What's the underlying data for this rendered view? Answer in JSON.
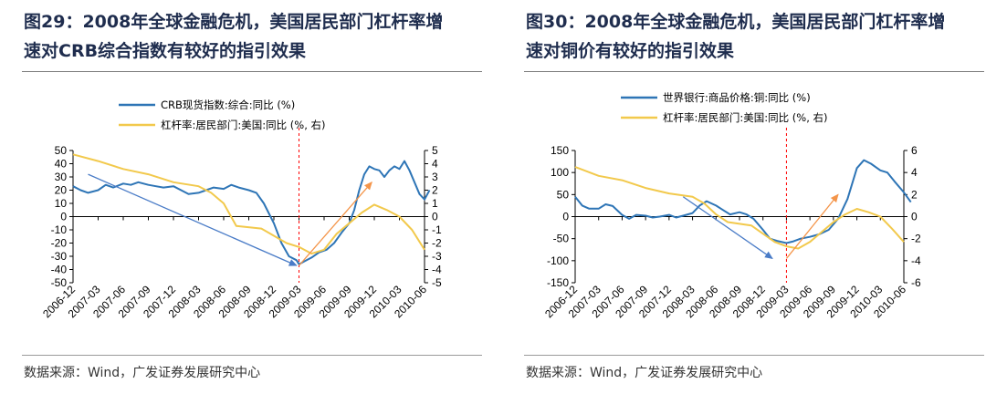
{
  "panels": [
    {
      "title_line1": "图29：2008年全球金融危机，美国居民部门杠杆率增",
      "title_line2": "速对CRB综合指数有较好的指引效果",
      "source": "数据来源：Wind，广发证券发展研究中心",
      "legend": [
        "CRB现货指数:综合:同比 (%)",
        "杠杆率:居民部门:美国:同比 (%, 右)"
      ]
    },
    {
      "title_line1": "图30：2008年全球金融危机，美国居民部门杠杆率增",
      "title_line2": "速对铜价有较好的指引效果",
      "source": "数据来源：Wind，广发证券发展研究中心",
      "legend": [
        "世界银行:商品价格:铜:同比 (%)",
        "杠杆率:居民部门:美国:同比 (%, 右)"
      ]
    }
  ],
  "colors": {
    "series1": "#2e75b6",
    "series2": "#f2c94c",
    "vline": "#ff0000",
    "arrow_blue": "#4a7cc7",
    "arrow_orange": "#f4954a"
  },
  "chart_data": [
    {
      "type": "line",
      "title": "图29：2008年全球金融危机，美国居民部门杠杆率增速对CRB综合指数有较好的指引效果",
      "x_labels": [
        "2006-12",
        "2007-03",
        "2007-06",
        "2007-09",
        "2007-12",
        "2008-03",
        "2008-06",
        "2008-09",
        "2008-12",
        "2009-03",
        "2009-06",
        "2009-09",
        "2009-12",
        "2010-03",
        "2010-06"
      ],
      "ylim": [
        -50,
        50
      ],
      "yticks": [
        -50,
        -40,
        -30,
        -20,
        -10,
        0,
        10,
        20,
        30,
        40,
        50
      ],
      "y2lim": [
        -5,
        5
      ],
      "y2ticks": [
        -5,
        -4,
        -3,
        -2,
        -1,
        0,
        1,
        2,
        3,
        4,
        5
      ],
      "vline_x": 9,
      "series": [
        {
          "name": "CRB现货指数:综合:同比 (%)",
          "axis": "left",
          "points": [
            [
              0,
              23
            ],
            [
              0.3,
              20
            ],
            [
              0.6,
              18
            ],
            [
              1,
              20
            ],
            [
              1.3,
              24
            ],
            [
              1.6,
              22
            ],
            [
              2,
              25
            ],
            [
              2.3,
              24
            ],
            [
              2.6,
              26
            ],
            [
              3,
              24
            ],
            [
              3.3,
              23
            ],
            [
              3.6,
              22
            ],
            [
              4,
              23
            ],
            [
              4.3,
              20
            ],
            [
              4.6,
              17
            ],
            [
              5,
              18
            ],
            [
              5.3,
              20
            ],
            [
              5.6,
              22
            ],
            [
              6,
              21
            ],
            [
              6.3,
              24
            ],
            [
              6.6,
              22
            ],
            [
              7,
              20
            ],
            [
              7.3,
              18
            ],
            [
              7.6,
              10
            ],
            [
              8,
              -5
            ],
            [
              8.3,
              -20
            ],
            [
              8.6,
              -30
            ],
            [
              8.9,
              -33
            ],
            [
              9,
              -36
            ],
            [
              9.2,
              -34
            ],
            [
              9.5,
              -31
            ],
            [
              9.8,
              -27
            ],
            [
              10.1,
              -25
            ],
            [
              10.4,
              -20
            ],
            [
              10.7,
              -12
            ],
            [
              11,
              -5
            ],
            [
              11.2,
              5
            ],
            [
              11.4,
              20
            ],
            [
              11.6,
              32
            ],
            [
              11.8,
              38
            ],
            [
              12,
              36
            ],
            [
              12.2,
              35
            ],
            [
              12.4,
              30
            ],
            [
              12.6,
              35
            ],
            [
              12.8,
              38
            ],
            [
              13,
              36
            ],
            [
              13.2,
              42
            ],
            [
              13.4,
              35
            ],
            [
              13.6,
              26
            ],
            [
              13.8,
              17
            ],
            [
              14,
              13
            ],
            [
              14.2,
              20
            ]
          ]
        },
        {
          "name": "杠杆率:居民部门:美国:同比 (%, 右)",
          "axis": "right",
          "points": [
            [
              0,
              4.7
            ],
            [
              1,
              4.2
            ],
            [
              2,
              3.6
            ],
            [
              3,
              3.2
            ],
            [
              4,
              2.6
            ],
            [
              5,
              2.3
            ],
            [
              5.5,
              1.8
            ],
            [
              6,
              1.0
            ],
            [
              6.5,
              -0.7
            ],
            [
              7.5,
              -0.9
            ],
            [
              8.5,
              -2.0
            ],
            [
              9,
              -2.3
            ],
            [
              9.5,
              -2.8
            ],
            [
              10,
              -2.5
            ],
            [
              10.5,
              -1.3
            ],
            [
              11,
              -0.5
            ],
            [
              11.5,
              0.3
            ],
            [
              12,
              0.9
            ],
            [
              12.5,
              0.5
            ],
            [
              13,
              0
            ],
            [
              13.5,
              -1.0
            ],
            [
              14,
              -2.5
            ]
          ]
        }
      ],
      "annotations": [
        {
          "type": "arrow",
          "color": "blue",
          "from": [
            0.6,
            32
          ],
          "to": [
            8.9,
            -37
          ]
        },
        {
          "type": "arrow",
          "color": "orange",
          "from": [
            9,
            -37
          ],
          "to": [
            11.9,
            26
          ]
        }
      ]
    },
    {
      "type": "line",
      "title": "图30：2008年全球金融危机，美国居民部门杠杆率增速对铜价有较好的指引效果",
      "x_labels": [
        "2006-12",
        "2007-03",
        "2007-06",
        "2007-09",
        "2007-12",
        "2008-03",
        "2008-06",
        "2008-09",
        "2008-12",
        "2009-03",
        "2009-06",
        "2009-09",
        "2009-12",
        "2010-03",
        "2010-06"
      ],
      "ylim": [
        -150,
        150
      ],
      "yticks": [
        -150,
        -100,
        -50,
        0,
        50,
        100,
        150
      ],
      "y2lim": [
        -6,
        6
      ],
      "y2ticks": [
        -6,
        -4,
        -2,
        0,
        2,
        4,
        6
      ],
      "vline_x": 9,
      "series": [
        {
          "name": "世界银行:商品价格:铜:同比 (%)",
          "axis": "left",
          "points": [
            [
              0,
              45
            ],
            [
              0.3,
              25
            ],
            [
              0.6,
              18
            ],
            [
              1,
              18
            ],
            [
              1.3,
              28
            ],
            [
              1.6,
              24
            ],
            [
              2,
              4
            ],
            [
              2.3,
              -5
            ],
            [
              2.6,
              4
            ],
            [
              3,
              2
            ],
            [
              3.3,
              -2
            ],
            [
              3.6,
              0
            ],
            [
              4,
              4
            ],
            [
              4.3,
              -2
            ],
            [
              4.6,
              2
            ],
            [
              5,
              8
            ],
            [
              5.3,
              25
            ],
            [
              5.6,
              35
            ],
            [
              6,
              25
            ],
            [
              6.3,
              15
            ],
            [
              6.6,
              5
            ],
            [
              7,
              10
            ],
            [
              7.3,
              5
            ],
            [
              7.6,
              -5
            ],
            [
              8,
              -30
            ],
            [
              8.3,
              -50
            ],
            [
              8.6,
              -55
            ],
            [
              9,
              -60
            ],
            [
              9.3,
              -56
            ],
            [
              9.6,
              -50
            ],
            [
              10,
              -46
            ],
            [
              10.4,
              -40
            ],
            [
              10.8,
              -30
            ],
            [
              11.2,
              -5
            ],
            [
              11.6,
              40
            ],
            [
              12,
              110
            ],
            [
              12.3,
              128
            ],
            [
              12.6,
              120
            ],
            [
              13,
              105
            ],
            [
              13.3,
              100
            ],
            [
              13.6,
              80
            ],
            [
              14,
              55
            ],
            [
              14.3,
              33
            ]
          ]
        },
        {
          "name": "杠杆率:居民部门:美国:同比 (%, 右)",
          "axis": "right",
          "points": [
            [
              0,
              4.5
            ],
            [
              1,
              3.7
            ],
            [
              2,
              3.3
            ],
            [
              3,
              2.6
            ],
            [
              4,
              2.1
            ],
            [
              5,
              1.8
            ],
            [
              5.5,
              1.2
            ],
            [
              6,
              0.2
            ],
            [
              6.5,
              -0.5
            ],
            [
              7.5,
              -0.8
            ],
            [
              8.5,
              -2.3
            ],
            [
              9,
              -2.7
            ],
            [
              9.5,
              -2.9
            ],
            [
              10,
              -2.3
            ],
            [
              10.5,
              -1.4
            ],
            [
              11,
              -0.5
            ],
            [
              11.5,
              0.2
            ],
            [
              12,
              0.7
            ],
            [
              12.5,
              0.4
            ],
            [
              13,
              0
            ],
            [
              13.5,
              -1.1
            ],
            [
              14,
              -2.3
            ]
          ]
        }
      ],
      "annotations": [
        {
          "type": "arrow",
          "color": "blue",
          "from": [
            4.6,
            45
          ],
          "to": [
            8.4,
            -95
          ]
        },
        {
          "type": "arrow",
          "color": "orange",
          "from": [
            9,
            -95
          ],
          "to": [
            11.2,
            50
          ]
        }
      ]
    }
  ]
}
